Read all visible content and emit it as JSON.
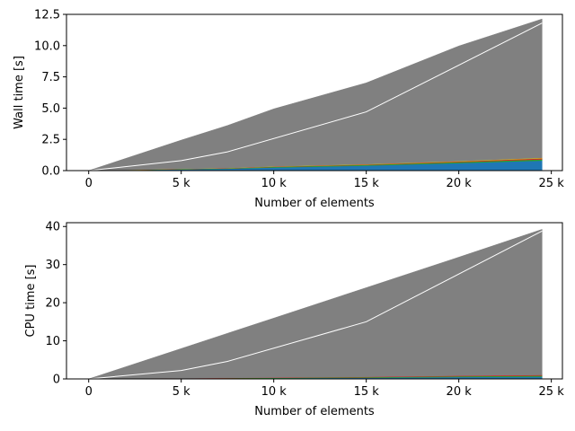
{
  "chart_data": [
    {
      "type": "area",
      "xlabel": "Number of elements",
      "ylabel": "Wall time [s]",
      "xlim": [
        -1200,
        25600
      ],
      "ylim": [
        0,
        12.5
      ],
      "x_ticks": [
        0,
        5000,
        10000,
        15000,
        20000,
        25000
      ],
      "x_tick_labels": [
        "0",
        "5 k",
        "10 k",
        "15 k",
        "20 k",
        "25 k"
      ],
      "y_ticks": [
        0,
        2.5,
        5,
        7.5,
        10,
        12.5
      ],
      "y_tick_labels": [
        "0.0",
        "2.5",
        "5.0",
        "7.5",
        "10.0",
        "12.5"
      ],
      "x": [
        0,
        5000,
        7500,
        10000,
        15000,
        20000,
        24500
      ],
      "stacked_series": [
        {
          "color": "#1f77b4",
          "values": [
            0,
            0.1,
            0.15,
            0.25,
            0.4,
            0.6,
            0.8
          ]
        },
        {
          "color": "#2ca02c",
          "values": [
            0,
            0.02,
            0.03,
            0.05,
            0.06,
            0.08,
            0.1
          ]
        },
        {
          "color": "#d62728",
          "values": [
            0,
            0.01,
            0.02,
            0.02,
            0.03,
            0.05,
            0.08
          ]
        },
        {
          "color": "#bcbd22",
          "values": [
            0,
            0.01,
            0.01,
            0.02,
            0.03,
            0.04,
            0.05
          ]
        },
        {
          "color": "#808080",
          "values": [
            0,
            2.3,
            3.4,
            4.6,
            6.5,
            9.2,
            11.1
          ]
        }
      ],
      "total_line": {
        "color": "#ffffff",
        "x": [
          0,
          5000,
          7500,
          15000,
          24500
        ],
        "values": [
          0,
          0.8,
          1.5,
          4.7,
          11.8
        ]
      }
    },
    {
      "type": "area",
      "xlabel": "Number of elements",
      "ylabel": "CPU time [s]",
      "xlim": [
        -1200,
        25600
      ],
      "ylim": [
        0,
        41
      ],
      "x_ticks": [
        0,
        5000,
        10000,
        15000,
        20000,
        25000
      ],
      "x_tick_labels": [
        "0",
        "5 k",
        "10 k",
        "15 k",
        "20 k",
        "25 k"
      ],
      "y_ticks": [
        0,
        10,
        20,
        30,
        40
      ],
      "y_tick_labels": [
        "0",
        "10",
        "20",
        "30",
        "40"
      ],
      "x": [
        0,
        5000,
        7500,
        10000,
        15000,
        20000,
        24500
      ],
      "stacked_series": [
        {
          "color": "#1f77b4",
          "values": [
            0,
            0.1,
            0.15,
            0.2,
            0.3,
            0.5,
            0.6
          ]
        },
        {
          "color": "#2ca02c",
          "values": [
            0,
            0.05,
            0.08,
            0.1,
            0.15,
            0.2,
            0.25
          ]
        },
        {
          "color": "#d62728",
          "values": [
            0,
            0.02,
            0.04,
            0.05,
            0.1,
            0.15,
            0.2
          ]
        },
        {
          "color": "#808080",
          "values": [
            0,
            7.8,
            11.7,
            15.6,
            23.4,
            31.1,
            38.2
          ]
        }
      ],
      "total_line": {
        "color": "#ffffff",
        "x": [
          0,
          5000,
          7500,
          15000,
          24500
        ],
        "values": [
          0,
          2.2,
          4.6,
          15.0,
          38.8
        ]
      }
    }
  ]
}
